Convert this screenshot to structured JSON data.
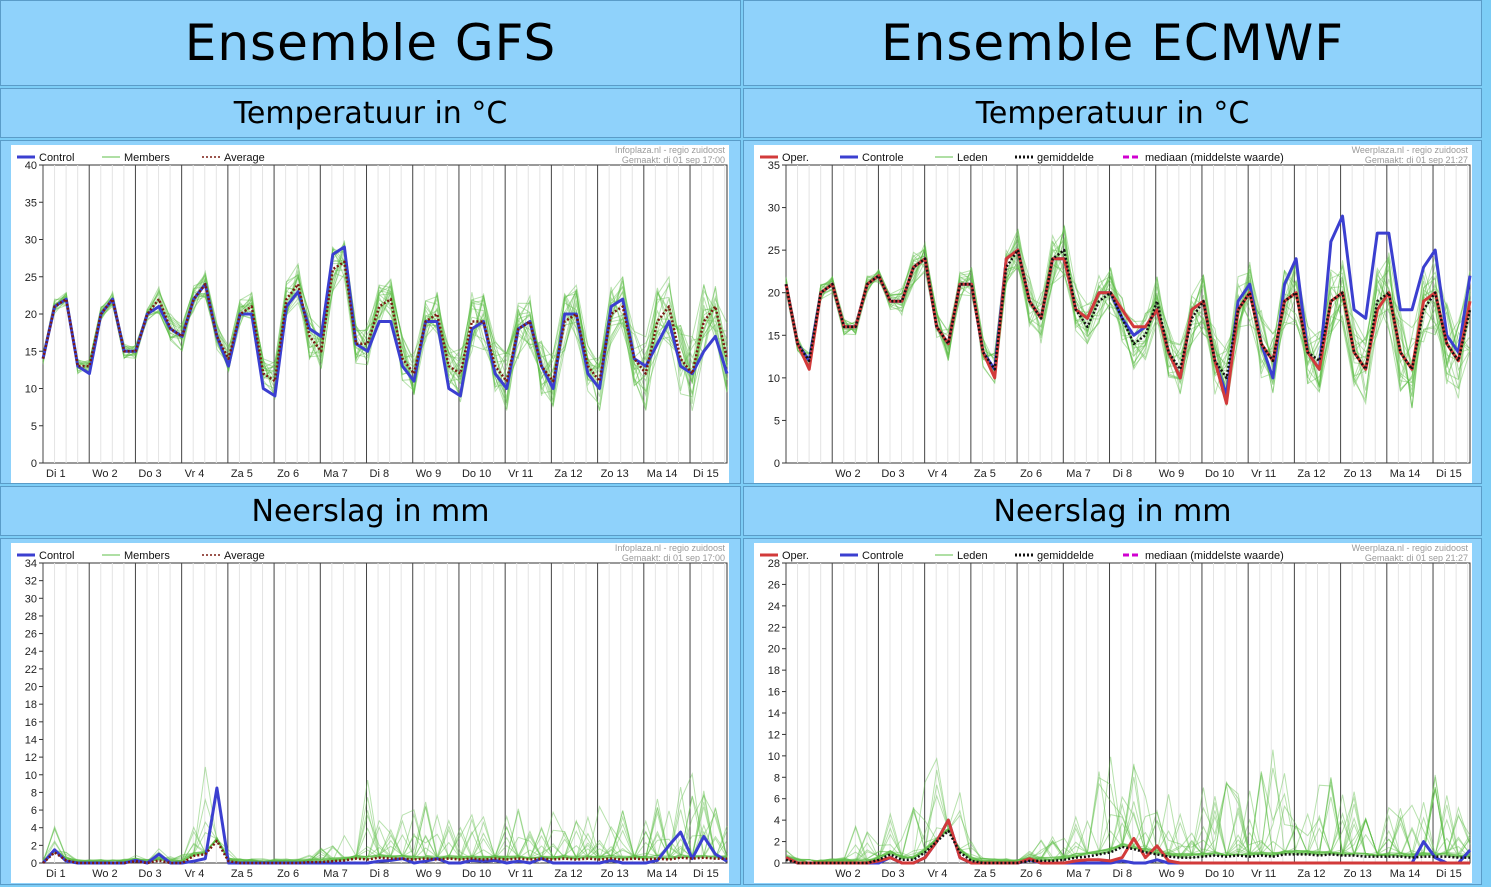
{
  "headers": {
    "gfs_title": "Ensemble GFS",
    "ecmwf_title": "Ensemble ECMWF",
    "temp_title": "Temperatuur in °C",
    "precip_title": "Neerslag in mm"
  },
  "colors": {
    "page_bg": "#8fd2fb",
    "control": "#3b3fd0",
    "member": "#5fbf4a",
    "average": "#7a1b12",
    "oper": "#d23a3a",
    "mediaan": "#d000d0"
  },
  "gfs_credit": [
    "Infoplaza.nl - regio zuidoost",
    "Gemaakt: di 01 sep 17:00"
  ],
  "ecmwf_credit": [
    "Weerplaza.nl - regio zuidoost",
    "Gemaakt: di 01 sep 21:27"
  ],
  "chart_data": [
    {
      "id": "gfs_temp",
      "type": "line",
      "day_labels": [
        "Di 1",
        "Wo 2",
        "Do 3",
        "Vr 4",
        "Za 5",
        "Zo 6",
        "Ma 7",
        "Di 8",
        "Wo 9",
        "Do 10",
        "Vr 11",
        "Za 12",
        "Zo 13",
        "Ma 14",
        "Di 15"
      ],
      "x_range": [
        0,
        14.8
      ],
      "ylim": [
        0,
        40
      ],
      "yticks": [
        0,
        5,
        10,
        15,
        20,
        25,
        30,
        35,
        40
      ],
      "legend": [
        "Control",
        "Members",
        "Average"
      ],
      "control": [
        14,
        21,
        22,
        13,
        12,
        20,
        22,
        15,
        15,
        20,
        21,
        18,
        17,
        22,
        24,
        17,
        13,
        20,
        20,
        10,
        9,
        21,
        23,
        18,
        17,
        28,
        29,
        16,
        15,
        19,
        19,
        13,
        11,
        19,
        19,
        10,
        9,
        18,
        19,
        12,
        10,
        18,
        19,
        13,
        10,
        20,
        20,
        12,
        10,
        21,
        22,
        14,
        13,
        16,
        19,
        13,
        12,
        15,
        17,
        12
      ],
      "average": [
        14,
        21,
        22,
        13,
        13,
        20,
        22,
        15,
        15,
        20,
        22,
        18,
        17,
        22,
        24,
        17,
        14,
        20,
        21,
        12,
        11,
        22,
        24,
        17,
        15,
        26,
        27,
        16,
        16,
        21,
        22,
        14,
        12,
        19,
        20,
        13,
        12,
        19,
        19,
        13,
        11,
        18,
        19,
        13,
        11,
        19,
        20,
        13,
        11,
        20,
        21,
        14,
        12,
        19,
        21,
        14,
        12,
        19,
        21,
        14
      ],
      "spread": [
        1,
        1,
        1,
        1,
        1,
        1,
        1,
        1,
        1,
        1,
        2,
        2,
        2,
        2,
        2,
        2,
        2,
        2,
        2,
        2,
        3,
        3,
        3,
        3,
        3,
        3,
        3,
        3,
        3,
        3,
        3,
        3,
        3,
        3,
        3,
        3,
        4,
        4,
        4,
        4,
        4,
        4,
        4,
        4,
        4,
        4,
        4,
        4,
        4,
        4,
        4,
        4,
        5,
        5,
        5,
        5,
        5,
        5,
        5,
        5
      ],
      "members": 20
    },
    {
      "id": "ecmwf_temp",
      "type": "line",
      "day_labels": [
        "Wo 2",
        "Do 3",
        "Vr 4",
        "Za 5",
        "Zo 6",
        "Ma 7",
        "Di 8",
        "Wo 9",
        "Do 10",
        "Vr 11",
        "Za 12",
        "Zo 13",
        "Ma 14",
        "Di 15"
      ],
      "x_range": [
        0,
        14.8
      ],
      "ylim": [
        0,
        35
      ],
      "yticks": [
        0,
        5,
        10,
        15,
        20,
        25,
        30,
        35
      ],
      "legend": [
        "Oper.",
        "Controle",
        "Leden",
        "gemiddelde",
        "mediaan (middelste waarde)"
      ],
      "oper": [
        21,
        14,
        11,
        20,
        21,
        16,
        16,
        21,
        22,
        19,
        19,
        23,
        24,
        16,
        14,
        21,
        21,
        13,
        10,
        24,
        25,
        19,
        17,
        24,
        24,
        18,
        17,
        20,
        20,
        18,
        16,
        16,
        18,
        13,
        10,
        18,
        19,
        12,
        7,
        18,
        20,
        14,
        12,
        19,
        20,
        13,
        11,
        19,
        20,
        13,
        11,
        18,
        20,
        13,
        11,
        19,
        20,
        14,
        12,
        19
      ],
      "control": [
        21,
        14,
        12,
        20,
        21,
        16,
        16,
        21,
        22,
        19,
        19,
        23,
        24,
        16,
        14,
        21,
        21,
        13,
        11,
        24,
        25,
        19,
        17,
        24,
        24,
        18,
        17,
        20,
        20,
        17,
        15,
        16,
        18,
        13,
        10,
        18,
        19,
        12,
        8,
        19,
        21,
        14,
        10,
        21,
        24,
        13,
        11,
        26,
        29,
        18,
        17,
        27,
        27,
        18,
        18,
        23,
        25,
        15,
        13,
        22
      ],
      "average": [
        21,
        14,
        12,
        20,
        21,
        16,
        16,
        21,
        22,
        19,
        19,
        23,
        24,
        16,
        14,
        21,
        21,
        13,
        11,
        23,
        25,
        19,
        17,
        24,
        25,
        18,
        16,
        19,
        20,
        17,
        14,
        15,
        19,
        13,
        11,
        17,
        19,
        12,
        10,
        18,
        20,
        14,
        12,
        19,
        20,
        13,
        12,
        19,
        20,
        13,
        11,
        19,
        20,
        13,
        11,
        18,
        20,
        14,
        12,
        18
      ],
      "spread": [
        1,
        1,
        1,
        1,
        1,
        1,
        1,
        1,
        1,
        1,
        2,
        2,
        2,
        2,
        2,
        2,
        2,
        2,
        2,
        2,
        3,
        3,
        3,
        3,
        3,
        3,
        3,
        3,
        3,
        3,
        3,
        3,
        3,
        3,
        3,
        3,
        4,
        4,
        4,
        4,
        4,
        4,
        4,
        4,
        4,
        4,
        4,
        4,
        4,
        4,
        4,
        4,
        5,
        5,
        5,
        5,
        5,
        5,
        5,
        5
      ],
      "members": 20
    },
    {
      "id": "gfs_precip",
      "type": "line",
      "day_labels": [
        "Di 1",
        "Wo 2",
        "Do 3",
        "Vr 4",
        "Za 5",
        "Zo 6",
        "Ma 7",
        "Di 8",
        "Wo 9",
        "Do 10",
        "Vr 11",
        "Za 12",
        "Zo 13",
        "Ma 14",
        "Di 15"
      ],
      "x_range": [
        0,
        14.8
      ],
      "ylim": [
        0,
        34
      ],
      "yticks": [
        0,
        2,
        4,
        6,
        8,
        10,
        12,
        14,
        16,
        18,
        20,
        22,
        24,
        26,
        28,
        30,
        32,
        34
      ],
      "legend": [
        "Control",
        "Members",
        "Average"
      ],
      "control": [
        0,
        1.5,
        0.2,
        0,
        0,
        0,
        0,
        0,
        0.3,
        0,
        1,
        0,
        0,
        0.2,
        0.5,
        8.5,
        0,
        0,
        0,
        0,
        0,
        0,
        0,
        0,
        0,
        0,
        0,
        0,
        0,
        0.2,
        0.3,
        0.5,
        0,
        0.2,
        0.5,
        0,
        0,
        0.3,
        0.2,
        0.3,
        0,
        0.2,
        0,
        0.5,
        0,
        0,
        0,
        0,
        0,
        0.3,
        0,
        0,
        0,
        0.3,
        2,
        3.5,
        0.5,
        3,
        1,
        0.2
      ],
      "average": [
        0,
        1.2,
        0.3,
        0,
        0,
        0,
        0,
        0,
        0.2,
        0,
        0.3,
        0,
        0,
        0.8,
        1,
        2.5,
        0.2,
        0,
        0,
        0,
        0,
        0,
        0,
        0.1,
        0.1,
        0.2,
        0.3,
        0.5,
        0.4,
        0.6,
        0.5,
        0.5,
        0.4,
        0.5,
        0.4,
        0.5,
        0.4,
        0.5,
        0.4,
        0.5,
        0.4,
        0.5,
        0.4,
        0.5,
        0.4,
        0.5,
        0.4,
        0.5,
        0.4,
        0.5,
        0.4,
        0.5,
        0.4,
        0.5,
        0.4,
        0.6,
        0.5,
        0.6,
        0.5,
        0.5
      ],
      "spread": [
        0,
        3,
        1,
        0.3,
        0.3,
        0.3,
        0.3,
        0.5,
        1,
        0.5,
        2,
        1,
        1,
        4,
        10,
        20,
        2,
        0.5,
        0.5,
        0.5,
        0.5,
        0.5,
        0.5,
        1,
        2,
        3,
        4,
        8,
        10,
        6,
        4,
        5,
        6,
        8,
        6,
        5,
        6,
        6,
        5,
        5,
        6,
        6,
        5,
        6,
        6,
        5,
        6,
        5,
        6,
        5,
        6,
        6,
        6,
        8,
        6,
        8,
        10,
        8,
        6,
        4
      ],
      "members": 20
    },
    {
      "id": "ecmwf_precip",
      "type": "line",
      "day_labels": [
        "Wo 2",
        "Do 3",
        "Vr 4",
        "Za 5",
        "Zo 6",
        "Ma 7",
        "Di 8",
        "Wo 9",
        "Do 10",
        "Vr 11",
        "Za 12",
        "Zo 13",
        "Ma 14",
        "Di 15"
      ],
      "x_range": [
        0,
        14.8
      ],
      "ylim": [
        0,
        28
      ],
      "yticks": [
        0,
        2,
        4,
        6,
        8,
        10,
        12,
        14,
        16,
        18,
        20,
        22,
        24,
        26,
        28
      ],
      "legend": [
        "Oper.",
        "Controle",
        "Leden",
        "gemiddelde",
        "mediaan (middelste waarde)"
      ],
      "oper": [
        0.5,
        0,
        0,
        0,
        0,
        0,
        0,
        0,
        0.2,
        0.5,
        0,
        0,
        0.5,
        2,
        4,
        0.5,
        0,
        0,
        0,
        0,
        0,
        0.4,
        0,
        0,
        0,
        0.2,
        0.3,
        0.3,
        0.2,
        0.5,
        2.3,
        0.5,
        1.6,
        0.2,
        0,
        0,
        0,
        0,
        0,
        0,
        0,
        0,
        0,
        0,
        0,
        0,
        0,
        0,
        0,
        0,
        0,
        0,
        0,
        0,
        0,
        0,
        0,
        0,
        0,
        0
      ],
      "control": [
        0.5,
        0,
        0,
        0,
        0,
        0,
        0,
        0,
        0,
        0.5,
        0,
        0,
        0.5,
        2,
        4,
        0.5,
        0,
        0,
        0,
        0,
        0,
        0.3,
        0,
        0,
        0,
        0,
        0,
        0,
        0,
        0.2,
        0,
        0,
        0.3,
        0,
        0,
        0,
        0,
        0,
        0,
        0,
        0,
        0,
        0,
        0,
        0,
        0,
        0,
        0,
        0,
        0,
        0,
        0,
        0,
        0,
        0,
        2,
        0.5,
        0,
        0,
        1.2
      ],
      "average": [
        0.3,
        0,
        0,
        0,
        0,
        0,
        0,
        0,
        0.3,
        0.8,
        0.3,
        0.3,
        1,
        2,
        3,
        1,
        0.2,
        0,
        0,
        0,
        0,
        0.2,
        0.2,
        0.2,
        0.3,
        0.5,
        0.6,
        0.8,
        1,
        1.5,
        1.3,
        1,
        0.8,
        0.6,
        0.5,
        0.5,
        0.6,
        0.7,
        0.6,
        0.7,
        0.6,
        0.7,
        0.6,
        0.8,
        0.8,
        0.8,
        0.7,
        0.8,
        0.7,
        0.7,
        0.6,
        0.6,
        0.6,
        0.6,
        0.5,
        0.6,
        0.6,
        0.6,
        0.5,
        0.5
      ],
      "spread": [
        1,
        0.5,
        0.3,
        0.3,
        0.5,
        2,
        4,
        3,
        2,
        4,
        3,
        5,
        8,
        11,
        14,
        6,
        2,
        0.5,
        0.3,
        0.3,
        0.5,
        1,
        2,
        3,
        3,
        4,
        6,
        8,
        10,
        9,
        8,
        7,
        6,
        6,
        5,
        6,
        7,
        6,
        7,
        6,
        7,
        8,
        12,
        9,
        7,
        6,
        7,
        8,
        6,
        6,
        5,
        6,
        5,
        6,
        5,
        6,
        8,
        6,
        5,
        4
      ],
      "members": 20
    }
  ]
}
